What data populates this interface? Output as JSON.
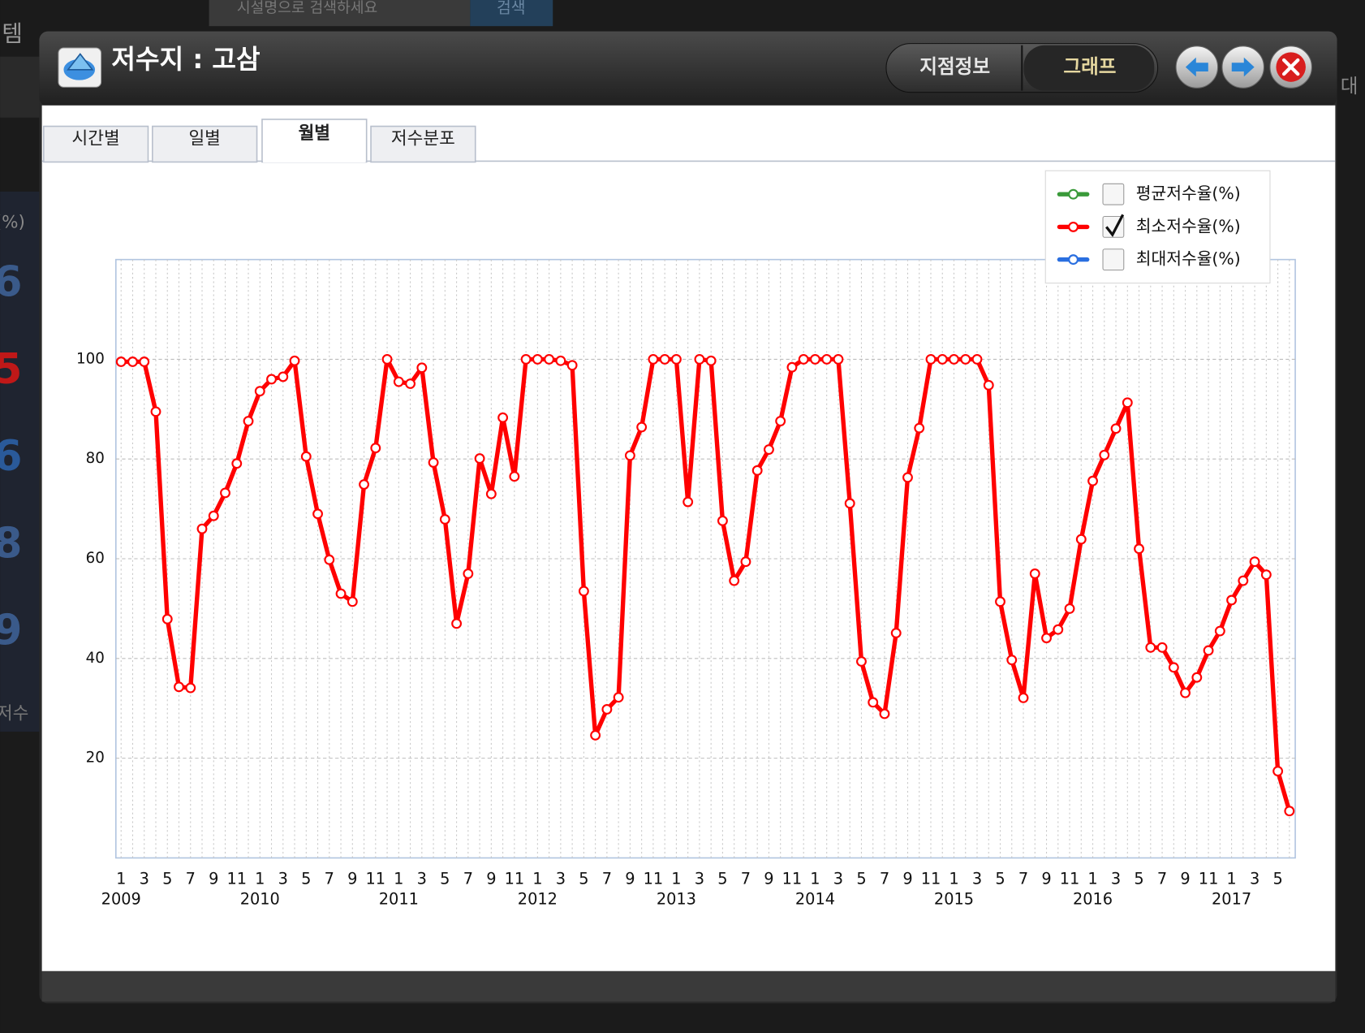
{
  "background": {
    "search_placeholder": "시설명으로 검색하세요",
    "search_button": "검색",
    "corner_left": "템",
    "corner_right": "대",
    "unit": "(%)",
    "side_numbers": [
      "6",
      "5",
      "6",
      "8",
      "9"
    ],
    "side_label": "저수"
  },
  "header": {
    "title": "저수지 : 고삼",
    "buttons": [
      {
        "label": "지점정보",
        "active": false
      },
      {
        "label": "그래프",
        "active": true
      }
    ]
  },
  "tabs": [
    {
      "label": "시간별",
      "active": false
    },
    {
      "label": "일별",
      "active": false
    },
    {
      "label": "월별",
      "active": true
    },
    {
      "label": "저수분포",
      "active": false
    }
  ],
  "chart_data": {
    "type": "line",
    "categories": [
      "1",
      null,
      "3",
      null,
      "5",
      null,
      "7",
      null,
      "9",
      null,
      "11",
      null,
      "1",
      null,
      "3",
      null,
      "5",
      null,
      "7",
      null,
      "9",
      null,
      "11",
      null,
      "1",
      null,
      "3",
      null,
      "5",
      null,
      "7",
      null,
      "9",
      null,
      "11",
      null,
      "1",
      null,
      "3",
      null,
      "5",
      null,
      "7",
      null,
      "9",
      null,
      "11",
      null,
      "1",
      null,
      "3",
      null,
      "5",
      null,
      "7",
      null,
      "9",
      null,
      "11",
      null,
      "1",
      null,
      "3",
      null,
      "5",
      null,
      "7",
      null,
      "9",
      null,
      "11",
      null,
      "1",
      null,
      "3",
      null,
      "5",
      null,
      "7",
      null,
      "9",
      null,
      "11",
      null,
      "1",
      null,
      "3",
      null,
      "5",
      null,
      "7",
      null,
      "9",
      null,
      "11",
      null,
      "1",
      null,
      "3",
      null,
      "5",
      null
    ],
    "years": [
      "2009",
      null,
      null,
      null,
      null,
      null,
      null,
      null,
      null,
      null,
      null,
      null,
      "2010",
      null,
      null,
      null,
      null,
      null,
      null,
      null,
      null,
      null,
      null,
      null,
      "2011",
      null,
      null,
      null,
      null,
      null,
      null,
      null,
      null,
      null,
      null,
      null,
      "2012",
      null,
      null,
      null,
      null,
      null,
      null,
      null,
      null,
      null,
      null,
      null,
      "2013",
      null,
      null,
      null,
      null,
      null,
      null,
      null,
      null,
      null,
      null,
      null,
      "2014",
      null,
      null,
      null,
      null,
      null,
      null,
      null,
      null,
      null,
      null,
      null,
      "2015",
      null,
      null,
      null,
      null,
      null,
      null,
      null,
      null,
      null,
      null,
      null,
      "2016",
      null,
      null,
      null,
      null,
      null,
      null,
      null,
      null,
      null,
      null,
      null,
      "2017",
      null,
      null,
      null,
      null,
      null
    ],
    "series": [
      {
        "name": "평균저수율(%)",
        "color": "#3a9a3a",
        "checked": false
      },
      {
        "name": "최소저수율(%)",
        "color": "#ff0000",
        "checked": true,
        "values": [
          99.5,
          99.5,
          99.5,
          89.5,
          47.9,
          34.3,
          34.1,
          66.0,
          68.6,
          73.2,
          79.1,
          87.6,
          93.6,
          96.0,
          96.5,
          99.7,
          80.5,
          69.0,
          59.8,
          53.0,
          51.4,
          74.9,
          82.2,
          100,
          95.5,
          95.1,
          98.3,
          79.3,
          67.9,
          47.0,
          57.0,
          80.1,
          73.0,
          88.3,
          76.5,
          100,
          100,
          100,
          99.7,
          98.8,
          53.5,
          24.6,
          29.8,
          32.2,
          80.7,
          86.4,
          100,
          100,
          100,
          71.4,
          100,
          99.7,
          67.6,
          55.6,
          59.4,
          77.7,
          81.9,
          87.6,
          98.4,
          100,
          100,
          100,
          100,
          71.1,
          39.4,
          31.2,
          28.9,
          45.1,
          76.3,
          86.2,
          100,
          100,
          100,
          100,
          100,
          94.8,
          51.4,
          39.7,
          32.1,
          57.0,
          44.1,
          45.8,
          50.0,
          63.9,
          75.6,
          80.8,
          86.1,
          91.3,
          62.0,
          42.2,
          42.2,
          38.2,
          33.1,
          36.2,
          41.6,
          45.5,
          51.7,
          55.6,
          59.4,
          56.8,
          17.4,
          9.4
        ]
      },
      {
        "name": "최대저수율(%)",
        "color": "#2a6fe0",
        "checked": false
      }
    ],
    "ylim": [
      0,
      120
    ],
    "yticks": [
      20,
      40,
      60,
      80,
      100
    ],
    "grid": true,
    "legend": "top-right"
  }
}
